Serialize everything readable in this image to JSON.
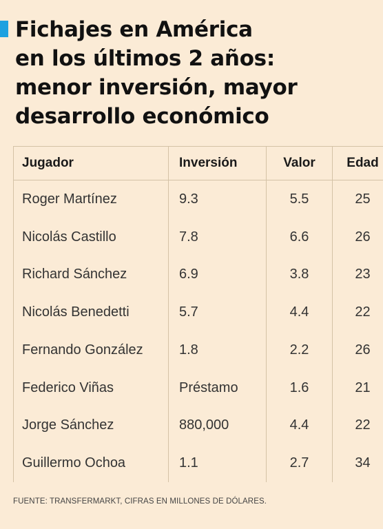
{
  "title_lines": [
    "Fichajes en América",
    "en los últimos 2 años:",
    "menor inversión, mayor",
    "desarrollo económico"
  ],
  "source_note": "FUENTE: TRANSFERMARKT, CIFRAS EN MILLONES DE DÓLARES.",
  "colors": {
    "background": "#fbebd6",
    "accent": "#1da1e0",
    "grid": "#d4c2a6"
  },
  "chart_data": {
    "type": "table",
    "title": "Fichajes en América en los últimos 2 años: menor inversión, mayor desarrollo económico",
    "columns": [
      "Jugador",
      "Inversión",
      "Valor",
      "Edad"
    ],
    "rows": [
      [
        "Roger Martínez",
        "9.3",
        "5.5",
        "25"
      ],
      [
        "Nicolás Castillo",
        "7.8",
        "6.6",
        "26"
      ],
      [
        "Richard Sánchez",
        "6.9",
        "3.8",
        "23"
      ],
      [
        "Nicolás Benedetti",
        "5.7",
        "4.4",
        "22"
      ],
      [
        "Fernando González",
        "1.8",
        "2.2",
        "26"
      ],
      [
        "Federico Viñas",
        "Préstamo",
        "1.6",
        "21"
      ],
      [
        "Jorge Sánchez",
        "880,000",
        "4.4",
        "22"
      ],
      [
        "Guillermo Ochoa",
        "1.1",
        "2.7",
        "34"
      ]
    ]
  }
}
